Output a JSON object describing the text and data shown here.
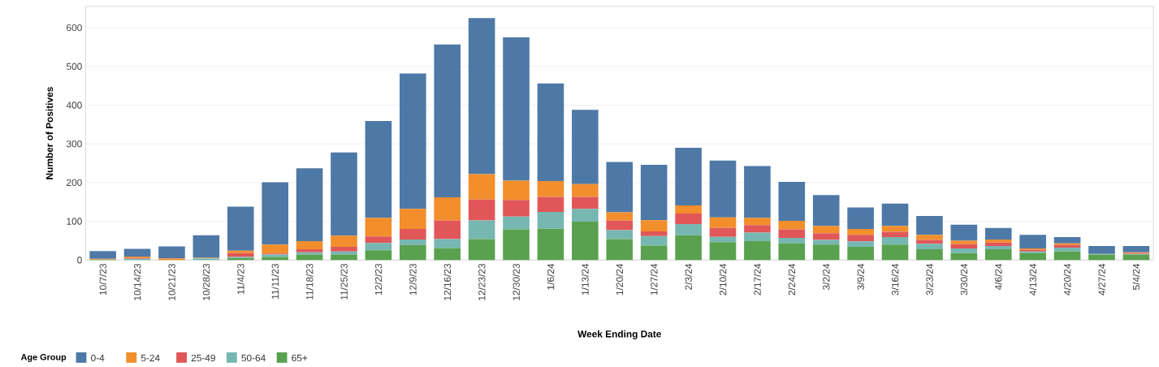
{
  "chart_data": {
    "type": "bar",
    "stacked": true,
    "xlabel": "Week Ending Date",
    "ylabel": "Number of Positives",
    "legend_title": "Age Group",
    "legend": "bottom",
    "grid": "y",
    "categories": [
      "10/7/23",
      "10/14/23",
      "10/21/23",
      "10/28/23",
      "11/4/23",
      "11/11/23",
      "11/18/23",
      "11/25/23",
      "12/2/23",
      "12/9/23",
      "12/16/23",
      "12/23/23",
      "12/30/23",
      "1/6/24",
      "1/13/24",
      "1/20/24",
      "1/27/24",
      "2/3/24",
      "2/10/24",
      "2/17/24",
      "2/24/24",
      "3/2/24",
      "3/9/24",
      "3/16/24",
      "3/23/24",
      "3/30/24",
      "4/6/24",
      "4/13/24",
      "4/20/24",
      "4/27/24",
      "5/4/24"
    ],
    "series": [
      {
        "name": "65+",
        "color": "#59a14f",
        "values": [
          1,
          0,
          0,
          0,
          5,
          8,
          14,
          14,
          25,
          39,
          31,
          54,
          79,
          81,
          99,
          54,
          37,
          64,
          46,
          49,
          43,
          40,
          34,
          40,
          28,
          18,
          28,
          18,
          22,
          14,
          14
        ]
      },
      {
        "name": "50-64",
        "color": "#76b7b2",
        "values": [
          0,
          3,
          0,
          4,
          3,
          6,
          6,
          8,
          19,
          14,
          23,
          48,
          33,
          43,
          33,
          23,
          25,
          29,
          14,
          22,
          14,
          12,
          14,
          19,
          14,
          12,
          8,
          4,
          10,
          2,
          2
        ]
      },
      {
        "name": "25-49",
        "color": "#e15759",
        "values": [
          0,
          2,
          0,
          0,
          10,
          3,
          8,
          12,
          17,
          27,
          48,
          54,
          43,
          39,
          31,
          25,
          12,
          27,
          23,
          19,
          22,
          17,
          17,
          14,
          10,
          11,
          9,
          4,
          7,
          0,
          2
        ]
      },
      {
        "name": "5-24",
        "color": "#f28e2b",
        "values": [
          2,
          4,
          4,
          2,
          6,
          23,
          21,
          29,
          48,
          52,
          60,
          66,
          50,
          41,
          33,
          21,
          29,
          21,
          27,
          19,
          22,
          19,
          15,
          15,
          13,
          9,
          8,
          4,
          4,
          0,
          2
        ]
      },
      {
        "name": "0-4",
        "color": "#4e79a7",
        "values": [
          20,
          20,
          31,
          58,
          114,
          161,
          188,
          215,
          250,
          350,
          395,
          403,
          370,
          252,
          192,
          130,
          143,
          149,
          147,
          134,
          101,
          80,
          56,
          58,
          49,
          41,
          30,
          35,
          16,
          20,
          16
        ]
      }
    ],
    "ylim": [
      0,
      655
    ],
    "yticks": [
      0,
      100,
      200,
      300,
      400,
      500,
      600
    ]
  }
}
